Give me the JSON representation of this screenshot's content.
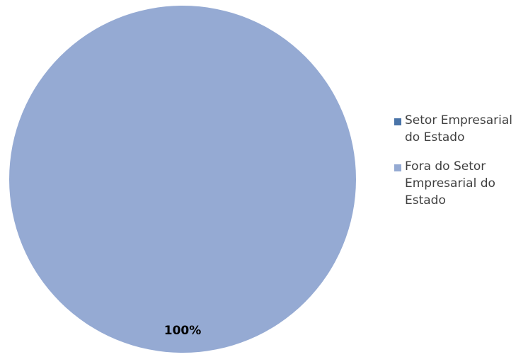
{
  "chart_data": {
    "type": "pie",
    "title": "",
    "slices": [
      {
        "label": "Setor Empresarial do Estado",
        "value": 0,
        "color": "#4a74a8"
      },
      {
        "label": "Fora do  Setor Empresarial do Estado",
        "value": 100,
        "color": "#95aad3"
      }
    ],
    "data_labels": [
      "100%"
    ],
    "legend_placement": "right"
  }
}
